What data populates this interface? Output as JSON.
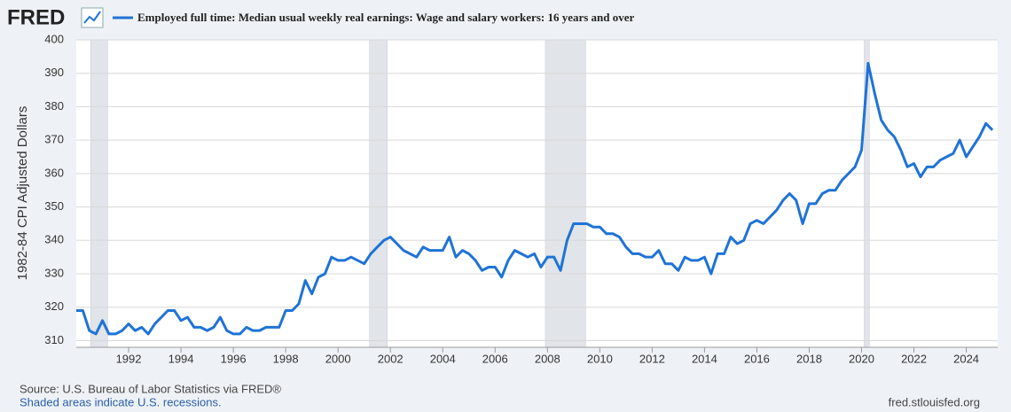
{
  "logo": "FRED",
  "chart_data": {
    "type": "line",
    "title": "Employed full time: Median usual weekly real earnings: Wage and salary workers: 16 years and over",
    "y_label": "1982-84 CPI Adjusted Dollars",
    "x": [
      1990,
      1990.25,
      1990.5,
      1990.75,
      1991,
      1991.25,
      1991.5,
      1991.75,
      1992,
      1992.25,
      1992.5,
      1992.75,
      1993,
      1993.25,
      1993.5,
      1993.75,
      1994,
      1994.25,
      1994.5,
      1994.75,
      1995,
      1995.25,
      1995.5,
      1995.75,
      1996,
      1996.25,
      1996.5,
      1996.75,
      1997,
      1997.25,
      1997.5,
      1997.75,
      1998,
      1998.25,
      1998.5,
      1998.75,
      1999,
      1999.25,
      1999.5,
      1999.75,
      2000,
      2000.25,
      2000.5,
      2000.75,
      2001,
      2001.25,
      2001.5,
      2001.75,
      2002,
      2002.25,
      2002.5,
      2002.75,
      2003,
      2003.25,
      2003.5,
      2003.75,
      2004,
      2004.25,
      2004.5,
      2004.75,
      2005,
      2005.25,
      2005.5,
      2005.75,
      2006,
      2006.25,
      2006.5,
      2006.75,
      2007,
      2007.25,
      2007.5,
      2007.75,
      2008,
      2008.25,
      2008.5,
      2008.75,
      2009,
      2009.25,
      2009.5,
      2009.75,
      2010,
      2010.25,
      2010.5,
      2010.75,
      2011,
      2011.25,
      2011.5,
      2011.75,
      2012,
      2012.25,
      2012.5,
      2012.75,
      2013,
      2013.25,
      2013.5,
      2013.75,
      2014,
      2014.25,
      2014.5,
      2014.75,
      2015,
      2015.25,
      2015.5,
      2015.75,
      2016,
      2016.25,
      2016.5,
      2016.75,
      2017,
      2017.25,
      2017.5,
      2017.75,
      2018,
      2018.25,
      2018.5,
      2018.75,
      2019,
      2019.25,
      2019.5,
      2019.75,
      2020,
      2020.25,
      2020.5,
      2020.75,
      2021,
      2021.25,
      2021.5,
      2021.75,
      2022,
      2022.25,
      2022.5,
      2022.75,
      2023,
      2023.25,
      2023.5,
      2023.75,
      2024,
      2024.25,
      2024.5,
      2024.75,
      2025
    ],
    "series": [
      {
        "name": "Employed full time: Median usual weekly real earnings: Wage and salary workers: 16 years and over",
        "color": "#1f73d6",
        "values": [
          319,
          319,
          313,
          312,
          316,
          312,
          312,
          313,
          315,
          313,
          314,
          312,
          315,
          317,
          319,
          319,
          316,
          317,
          314,
          314,
          313,
          314,
          317,
          313,
          312,
          312,
          314,
          313,
          313,
          314,
          314,
          314,
          319,
          319,
          321,
          328,
          324,
          329,
          330,
          335,
          334,
          334,
          335,
          334,
          333,
          336,
          338,
          340,
          341,
          339,
          337,
          336,
          335,
          338,
          337,
          337,
          337,
          341,
          335,
          337,
          336,
          334,
          331,
          332,
          332,
          329,
          334,
          337,
          336,
          335,
          336,
          332,
          335,
          335,
          331,
          340,
          345,
          345,
          345,
          344,
          344,
          342,
          342,
          341,
          338,
          336,
          336,
          335,
          335,
          337,
          333,
          333,
          331,
          335,
          334,
          334,
          335,
          330,
          336,
          336,
          341,
          339,
          340,
          345,
          346,
          345,
          347,
          349,
          352,
          354,
          352,
          345,
          351,
          351,
          354,
          355,
          355,
          358,
          360,
          362,
          367,
          393,
          384,
          376,
          373,
          371,
          367,
          362,
          363,
          359,
          362,
          362,
          364,
          365,
          366,
          370,
          365,
          368,
          371,
          375,
          373
        ]
      }
    ],
    "recessions": [
      [
        1990.55,
        1991.2
      ],
      [
        2001.2,
        2001.88
      ],
      [
        2007.92,
        2009.46
      ],
      [
        2020.1,
        2020.3
      ]
    ],
    "xlim": [
      1990,
      2025.2
    ],
    "xticks": [
      1992,
      1994,
      1996,
      1998,
      2000,
      2002,
      2004,
      2006,
      2008,
      2010,
      2012,
      2014,
      2016,
      2018,
      2020,
      2022,
      2024
    ],
    "ylim": [
      308,
      400
    ],
    "yticks": [
      310,
      320,
      330,
      340,
      350,
      360,
      370,
      380,
      390,
      400
    ],
    "grid": true
  },
  "footer": {
    "source": "Source: U.S. Bureau of Labor Statistics via FRED®",
    "note": "Shaded areas indicate U.S. recessions.",
    "site": "fred.stlouisfed.org"
  }
}
